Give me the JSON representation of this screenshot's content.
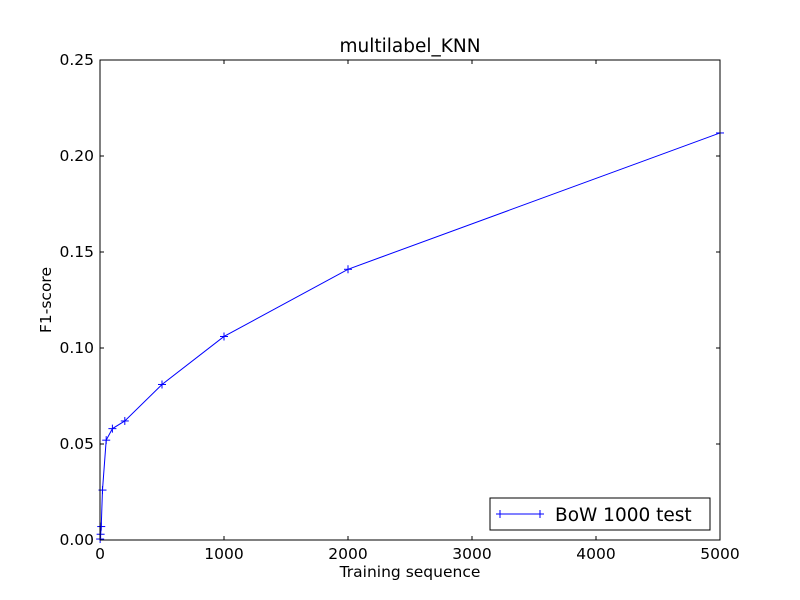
{
  "chart_data": {
    "type": "line",
    "title": "multilabel_KNN",
    "xlabel": "Training sequence",
    "ylabel": "F1-score",
    "xlim": [
      0,
      5000
    ],
    "ylim": [
      0,
      0.25
    ],
    "xticks": [
      0,
      1000,
      2000,
      3000,
      4000,
      5000
    ],
    "xtick_labels": [
      "0",
      "1000",
      "2000",
      "3000",
      "4000",
      "5000"
    ],
    "yticks": [
      0,
      0.05,
      0.1,
      0.15,
      0.2,
      0.25
    ],
    "ytick_labels": [
      "0.00",
      "0.05",
      "0.10",
      "0.15",
      "0.20",
      "0.25"
    ],
    "grid": false,
    "legend_position": "lower right",
    "series": [
      {
        "name": "BoW 1000 test",
        "color": "#0000ff",
        "marker": "+",
        "x": [
          1,
          5,
          10,
          20,
          50,
          100,
          200,
          500,
          1000,
          2000,
          5000
        ],
        "y": [
          0.0005,
          0.003,
          0.007,
          0.026,
          0.052,
          0.058,
          0.062,
          0.081,
          0.106,
          0.141,
          0.212
        ]
      }
    ]
  }
}
